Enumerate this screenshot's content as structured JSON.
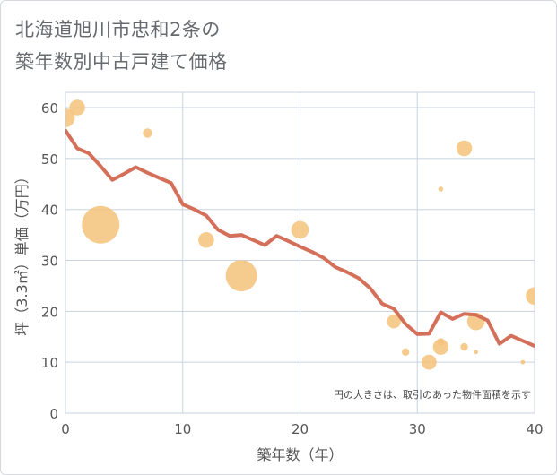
{
  "header": {
    "title_line1": "北海道旭川市忠和2条の",
    "title_line2": "築年数別中古戸建て価格"
  },
  "chart_data": {
    "type": "scatter+line",
    "title": "北海道旭川市忠和2条の築年数別中古戸建て価格",
    "xlabel": "築年数（年）",
    "ylabel": "坪（3.3㎡）単価（万円）",
    "xlim": [
      0,
      40
    ],
    "ylim": [
      0,
      63
    ],
    "x_ticks": [
      0,
      10,
      20,
      30,
      40
    ],
    "y_ticks": [
      0,
      10,
      20,
      30,
      40,
      50,
      60
    ],
    "grid": true,
    "note": "円の大きさは、取引のあった物件面積を示す",
    "colors": {
      "bubble": "#f5c27a",
      "line": "#d4705a",
      "grid": "#c8d3df"
    },
    "bubbles": [
      {
        "x": 0,
        "y": 58,
        "size": 3
      },
      {
        "x": 1,
        "y": 60,
        "size": 2.5
      },
      {
        "x": 3,
        "y": 37,
        "size": 6
      },
      {
        "x": 7,
        "y": 55,
        "size": 1.5
      },
      {
        "x": 12,
        "y": 34,
        "size": 2.5
      },
      {
        "x": 15,
        "y": 27,
        "size": 5
      },
      {
        "x": 20,
        "y": 36,
        "size": 2.8
      },
      {
        "x": 28,
        "y": 18,
        "size": 2.2
      },
      {
        "x": 29,
        "y": 12,
        "size": 1.2
      },
      {
        "x": 31,
        "y": 10,
        "size": 2.4
      },
      {
        "x": 32,
        "y": 44,
        "size": 0.8
      },
      {
        "x": 32,
        "y": 14,
        "size": 1.2
      },
      {
        "x": 32,
        "y": 13,
        "size": 2.5
      },
      {
        "x": 34,
        "y": 52,
        "size": 2.5
      },
      {
        "x": 34,
        "y": 13,
        "size": 1.2
      },
      {
        "x": 35,
        "y": 18,
        "size": 2.8
      },
      {
        "x": 35,
        "y": 12,
        "size": 0.7
      },
      {
        "x": 39,
        "y": 10,
        "size": 0.7
      },
      {
        "x": 40,
        "y": 23,
        "size": 2.8
      }
    ],
    "line": {
      "x": [
        0,
        1,
        2,
        3,
        4,
        5,
        6,
        7,
        8,
        9,
        10,
        11,
        12,
        13,
        14,
        15,
        16,
        17,
        18,
        19,
        20,
        21,
        22,
        23,
        24,
        25,
        26,
        27,
        28,
        29,
        30,
        31,
        32,
        33,
        34,
        35,
        36,
        37,
        38,
        39,
        40
      ],
      "y": [
        55.5,
        52,
        51,
        48.5,
        45.8,
        47,
        48.3,
        47.2,
        46.2,
        45.2,
        41,
        40,
        38.8,
        36,
        34.8,
        35,
        34,
        33,
        34.8,
        33.8,
        32.7,
        31.7,
        30.5,
        28.7,
        27.7,
        26.5,
        24.5,
        21.5,
        20.5,
        17.5,
        15.5,
        15.6,
        19.8,
        18.5,
        19.5,
        19.3,
        18.2,
        13.6,
        15.2,
        14.2,
        13.2
      ]
    }
  }
}
